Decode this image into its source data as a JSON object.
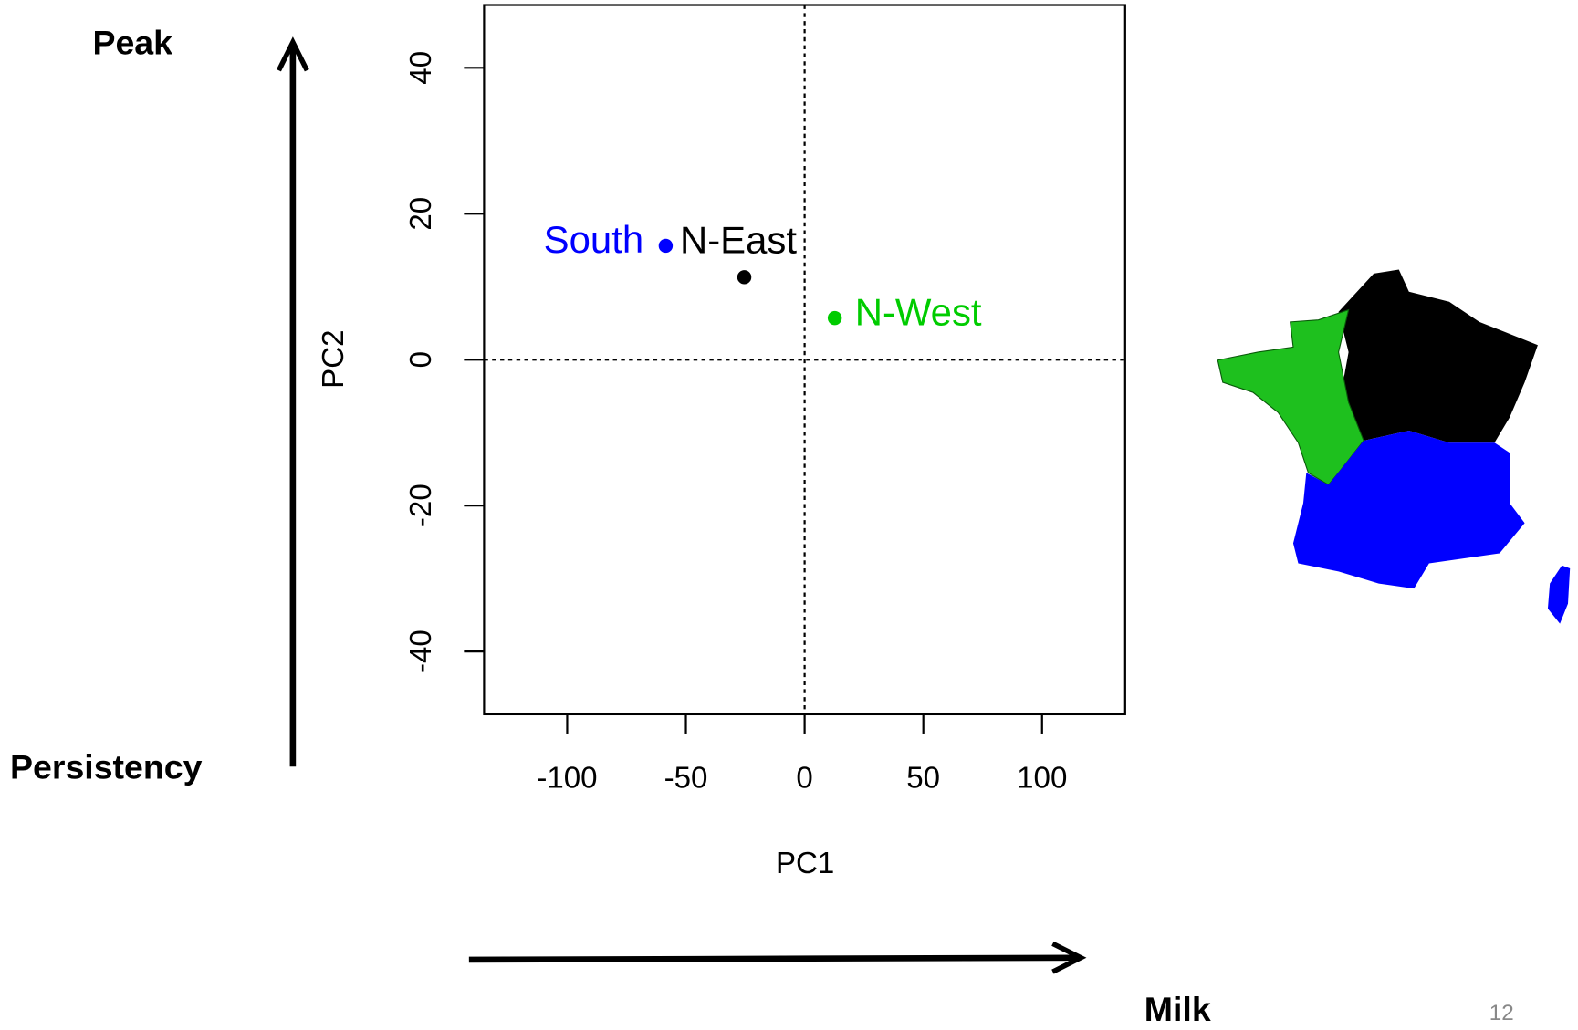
{
  "chart_data": {
    "type": "scatter",
    "xlabel": "PC1",
    "ylabel": "PC2",
    "xlim": [
      -135,
      135
    ],
    "ylim": [
      -48.6,
      48.6
    ],
    "xticks": [
      -100,
      -50,
      0,
      50,
      100
    ],
    "yticks": [
      -40,
      -20,
      0,
      20,
      40
    ],
    "zero_lines": true,
    "series": [
      {
        "name": "South",
        "color": "#0000ff",
        "x": [
          -58.5
        ],
        "values": [
          15.6
        ]
      },
      {
        "name": "N-East",
        "color": "#000000",
        "x": [
          -25.4
        ],
        "values": [
          11.3
        ]
      },
      {
        "name": "N-West",
        "color": "#00cc00",
        "x": [
          12.7
        ],
        "values": [
          5.7
        ]
      }
    ]
  },
  "annotations": {
    "top": "Peak",
    "bottom": "Persistency",
    "right": "Milk"
  },
  "page_number": "12"
}
